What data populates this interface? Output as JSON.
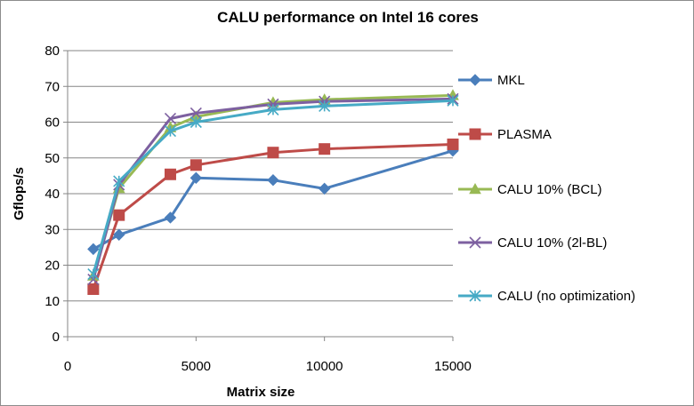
{
  "chart_data": {
    "type": "line",
    "title": "CALU performance on Intel 16 cores",
    "xlabel": "Matrix size",
    "ylabel": "Gflops/s",
    "xlim": [
      0,
      15000
    ],
    "ylim": [
      0,
      80
    ],
    "x_ticks": [
      0,
      5000,
      10000,
      15000
    ],
    "y_ticks": [
      0,
      10,
      20,
      30,
      40,
      50,
      60,
      70,
      80
    ],
    "x_tick_labels": [
      "0",
      "5000",
      "10000",
      "15000"
    ],
    "y_tick_labels": [
      "0",
      "10",
      "20",
      "30",
      "40",
      "50",
      "60",
      "70",
      "80"
    ],
    "grid": "horizontal",
    "legend_position": "right",
    "series": [
      {
        "name": "MKL",
        "color": "#4a7ebb",
        "marker": "diamond",
        "x": [
          1000,
          2000,
          4000,
          5000,
          8000,
          10000,
          15000
        ],
        "y": [
          24.5,
          28.5,
          33.3,
          44.4,
          43.8,
          41.4,
          52.0
        ]
      },
      {
        "name": "PLASMA",
        "color": "#be4b48",
        "marker": "square",
        "x": [
          1000,
          2000,
          4000,
          5000,
          8000,
          10000,
          15000
        ],
        "y": [
          13.3,
          34.0,
          45.4,
          48.0,
          51.5,
          52.5,
          53.8
        ]
      },
      {
        "name": "CALU 10% (BCL)",
        "color": "#98b954",
        "marker": "triangle",
        "x": [
          1000,
          2000,
          4000,
          5000,
          8000,
          10000,
          15000
        ],
        "y": [
          17.0,
          41.5,
          58.5,
          61.5,
          65.5,
          66.3,
          67.5
        ]
      },
      {
        "name": "CALU 10% (2l-BL)",
        "color": "#7d60a0",
        "marker": "x",
        "x": [
          1000,
          2000,
          4000,
          5000,
          8000,
          10000,
          15000
        ],
        "y": [
          16.0,
          42.5,
          61.0,
          62.5,
          65.0,
          65.8,
          66.5
        ]
      },
      {
        "name": "CALU (no optimization)",
        "color": "#46aac5",
        "marker": "star",
        "x": [
          1000,
          2000,
          4000,
          5000,
          8000,
          10000,
          15000
        ],
        "y": [
          17.5,
          43.5,
          57.5,
          60.0,
          63.5,
          64.5,
          66.0
        ]
      }
    ]
  }
}
